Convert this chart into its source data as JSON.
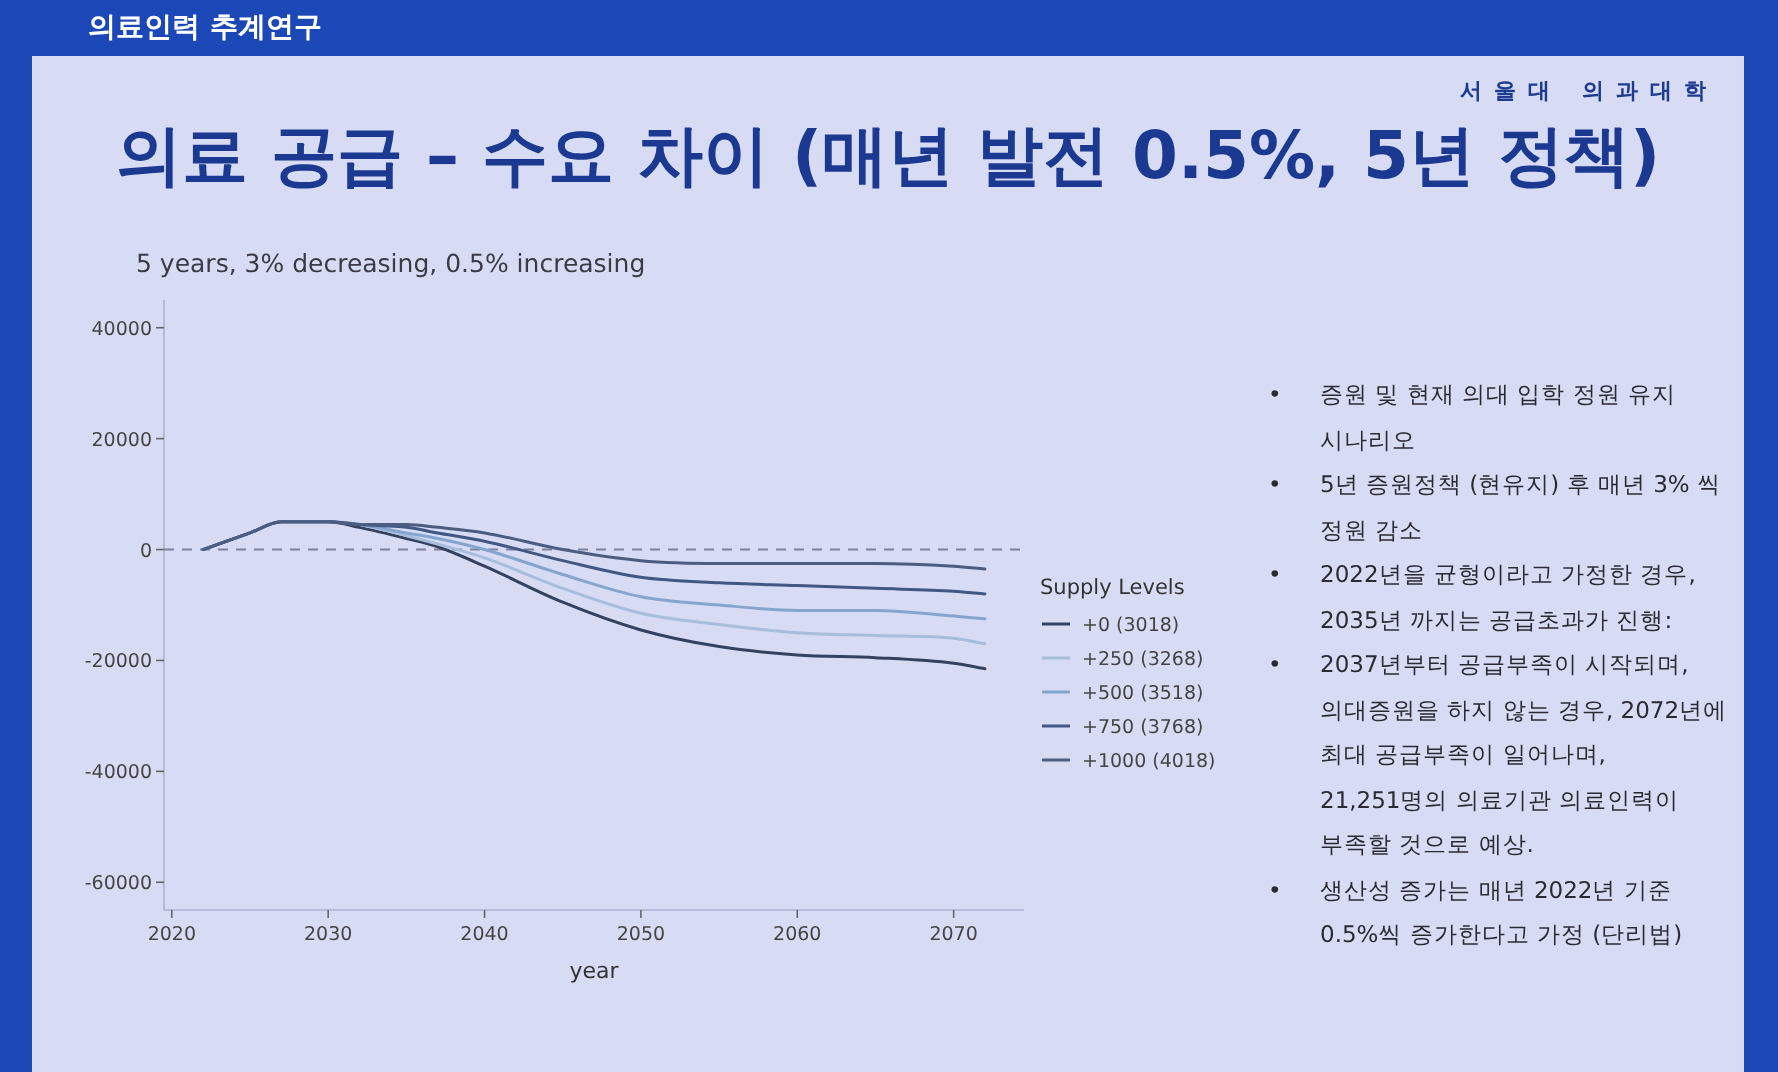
{
  "chart_data": {
    "type": "line",
    "title": "의료 공급 – 수요 차이 (매년 발전 0.5%, 5년 정책)",
    "subtitle": "5 years, 3% decreasing, 0.5% increasing",
    "xlabel": "year",
    "legend_title": "Supply Levels",
    "legend": "right",
    "xlim": [
      2019.5,
      2074.5
    ],
    "xticks": [
      2020,
      2030,
      2040,
      2050,
      2060,
      2070
    ],
    "ylim": [
      -65000,
      45000
    ],
    "yticks": [
      -60000,
      -40000,
      -20000,
      0,
      20000,
      40000
    ],
    "x": [
      2022,
      2025,
      2027,
      2030,
      2032,
      2035,
      2037,
      2040,
      2045,
      2050,
      2055,
      2060,
      2065,
      2070,
      2072
    ],
    "series": [
      {
        "name": "+0 (3018)",
        "color": "#34425f",
        "values": [
          0,
          3000,
          5000,
          5000,
          4000,
          2000,
          500,
          -3000,
          -9500,
          -14500,
          -17500,
          -19000,
          -19500,
          -20500,
          -21500
        ]
      },
      {
        "name": "+250 (3268)",
        "color": "#a6bedc",
        "values": [
          0,
          3000,
          5000,
          5000,
          4500,
          2500,
          1000,
          -1500,
          -7000,
          -11500,
          -13500,
          -15000,
          -15500,
          -16000,
          -17000
        ]
      },
      {
        "name": "+500 (3518)",
        "color": "#84a5cd",
        "values": [
          0,
          3000,
          5000,
          5000,
          4500,
          3000,
          2000,
          0,
          -4500,
          -8500,
          -10000,
          -11000,
          -11000,
          -12000,
          -12500
        ]
      },
      {
        "name": "+750 (3768)",
        "color": "#3f5884",
        "values": [
          0,
          3000,
          5000,
          5000,
          4500,
          4000,
          3000,
          1500,
          -2000,
          -5000,
          -6000,
          -6500,
          -7000,
          -7500,
          -8000
        ]
      },
      {
        "name": "+1000 (4018)",
        "color": "#4c5d80",
        "values": [
          0,
          3000,
          5000,
          5000,
          4500,
          4500,
          4000,
          3000,
          0,
          -2000,
          -2500,
          -2500,
          -2500,
          -3000,
          -3500
        ]
      }
    ],
    "ref_lines": [
      {
        "axis": "y",
        "value": 0,
        "line_style": "dashed",
        "color": "#7d829c"
      }
    ],
    "annotations": [
      "의료인력 추계연구",
      "서울대 의과대학",
      "• 증원 및 현재 의대 입학 정원 유지 시나리오",
      "• 5년 증원정책 (현유지) 후 매년 3% 씩 정원 감소",
      "• 2022년을 균형이라고 가정한 경우, 2035년 까지는 공급초과가 진행:",
      "• 2037년부터 공급부족이 시작되며, 의대증원을 하지 않는 경우, 2072년에 최대 공급부족이 일어나며, 21,251명의 의료기관 의료인력이 부족할 것으로 예상.",
      "• 생산성 증가는 매년 2022년 기준 0.5%씩 증가한다고 가정 (단리법)"
    ]
  }
}
